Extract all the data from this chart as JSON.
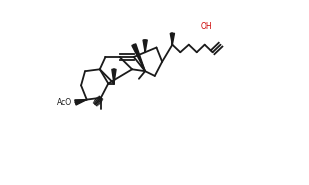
{
  "title": "",
  "background_color": "#ffffff",
  "line_color": "#1a1a1a",
  "highlight_color": "#cc0000",
  "figsize": [
    3.09,
    1.85
  ],
  "dpi": 100
}
